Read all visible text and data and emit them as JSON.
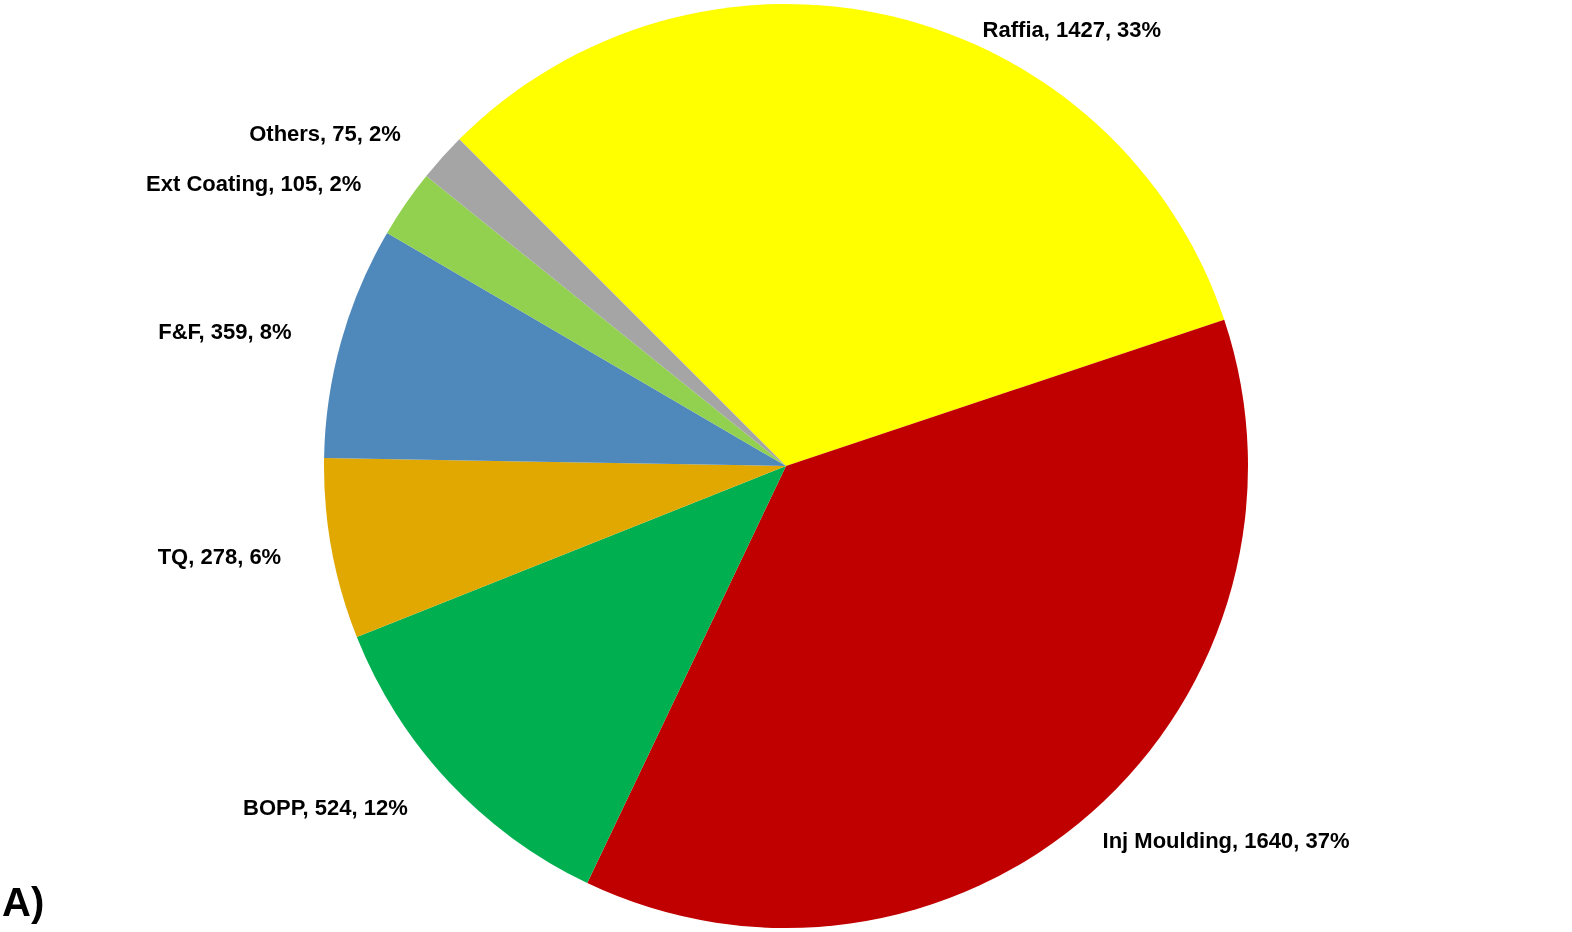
{
  "chart_data": {
    "type": "pie",
    "categories": [
      "Raffia",
      "Inj Moulding",
      "BOPP",
      "TQ",
      "F&F",
      "Ext Coating",
      "Others"
    ],
    "values": [
      1427,
      1640,
      524,
      278,
      359,
      105,
      75
    ],
    "value_labels": [
      "1427, 33%",
      "1640, 37%",
      "524, 12%",
      "278, 6%",
      "359, 8%",
      "105, 2%",
      "75, 2%"
    ],
    "colors": [
      "#ffff00",
      "#c00000",
      "#00b050",
      "#e0a800",
      "#4f88bb",
      "#92d050",
      "#a5a5a5"
    ],
    "annotations": [
      "A)"
    ]
  }
}
